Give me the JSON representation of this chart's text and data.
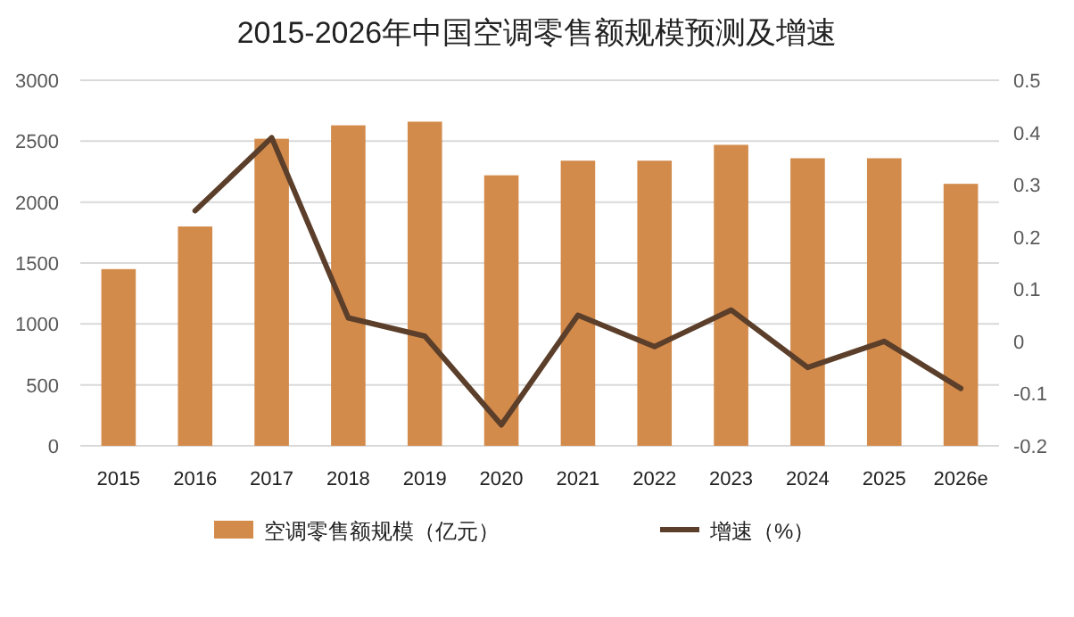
{
  "chart_data": {
    "type": "bar",
    "title": "2015-2026年中国空调零售额规模预测及增速",
    "categories": [
      "2015",
      "2016",
      "2017",
      "2018",
      "2019",
      "2020",
      "2021",
      "2022",
      "2023",
      "2024",
      "2025",
      "2026e"
    ],
    "series": [
      {
        "name": "空调零售额规模（亿元）",
        "color": "#d38b4c",
        "values": [
          1450,
          1800,
          2520,
          2630,
          2660,
          2220,
          2340,
          2340,
          2470,
          2360,
          2360,
          2150
        ]
      },
      {
        "name": "增速（%）",
        "type": "line",
        "axis": "y2",
        "color": "#5b3f2a",
        "values": [
          null,
          0.25,
          0.39,
          0.045,
          0.01,
          -0.16,
          0.05,
          -0.01,
          0.06,
          -0.05,
          0.0,
          -0.09
        ]
      }
    ],
    "ylim": [
      0,
      3000
    ],
    "yticks": [
      0,
      500,
      1000,
      1500,
      2000,
      2500,
      3000
    ],
    "y2lim": [
      -0.2,
      0.5
    ],
    "y2ticks": [
      -0.2,
      -0.1,
      0,
      0.1,
      0.2,
      0.3,
      0.4,
      0.5
    ],
    "grid": "y",
    "legend": "bottom"
  }
}
